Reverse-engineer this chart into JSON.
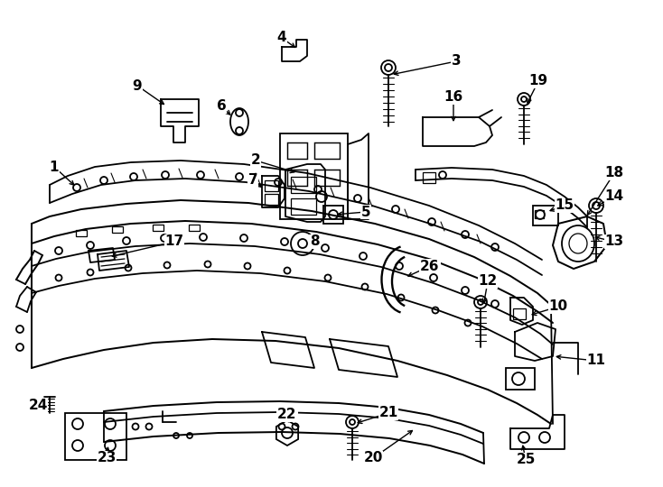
{
  "background_color": "#ffffff",
  "line_color": "#000000",
  "lw": 1.3,
  "fig_w": 7.34,
  "fig_h": 5.4,
  "dpi": 100
}
